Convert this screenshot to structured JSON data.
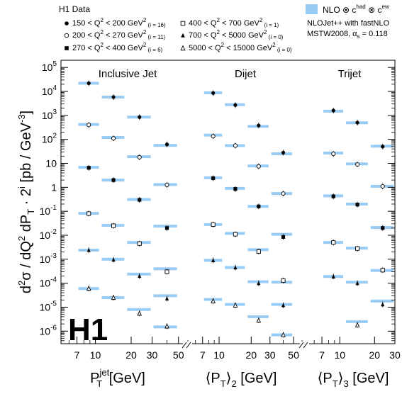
{
  "chart_data": {
    "type": "scatter",
    "legend_title": "H1 Data",
    "legend_entries": [
      {
        "marker": "filled-circle",
        "label_pre": "150 < Q",
        "label_post": " < 200 GeV",
        "sub": "(i = 16)"
      },
      {
        "marker": "open-circle",
        "label_pre": "200 < Q",
        "label_post": " < 270 GeV",
        "sub": "(i = 11)"
      },
      {
        "marker": "filled-square",
        "label_pre": "270 < Q",
        "label_post": " < 400 GeV",
        "sub": "(i = 6)"
      },
      {
        "marker": "open-square",
        "label_pre": "400 < Q",
        "label_post": " < 700 GeV",
        "sub": "(i = 1)"
      },
      {
        "marker": "filled-triangle",
        "label_pre": "700 < Q",
        "label_post": " < 5000 GeV",
        "sub": "(i = 0)"
      },
      {
        "marker": "open-triangle",
        "label_pre": "5000 < Q",
        "label_post": " < 15000 GeV",
        "sub": "(i = 0)"
      }
    ],
    "theory_legend": {
      "label_pre": "NLO ⊗ c",
      "sup1": "had",
      "mid": " ⊗ c",
      "sup2": "ew",
      "color": "#99ccf5",
      "note1": "NLOJet++ with fastNLO",
      "note2_pre": "MSTW2008, α",
      "note2_sub": "s",
      "note2_post": " = 0.118"
    },
    "ylabel": {
      "a": "d",
      "b": "σ / dQ",
      "c": " dP",
      "d": "T",
      "e": " · 2",
      "f": "i",
      "g": " [pb / GeV",
      "h": "-3",
      "i": "]"
    },
    "ylim": [
      3e-07,
      200000.0
    ],
    "yscale": "log",
    "yticks": [
      {
        "v": 1e-06,
        "base": "10",
        "exp": "-6"
      },
      {
        "v": 1e-05,
        "base": "10",
        "exp": "-5"
      },
      {
        "v": 0.0001,
        "base": "10",
        "exp": "-4"
      },
      {
        "v": 0.001,
        "base": "10",
        "exp": "-3"
      },
      {
        "v": 0.01,
        "base": "10",
        "exp": "-2"
      },
      {
        "v": 0.1,
        "base": "10",
        "exp": "-1"
      },
      {
        "v": 1,
        "base": "1",
        "exp": ""
      },
      {
        "v": 10,
        "base": "10",
        "exp": ""
      },
      {
        "v": 100,
        "base": "10",
        "exp": "2"
      },
      {
        "v": 1000.0,
        "base": "10",
        "exp": "3"
      },
      {
        "v": 10000.0,
        "base": "10",
        "exp": "4"
      },
      {
        "v": 100000.0,
        "base": "10",
        "exp": "5"
      }
    ],
    "logo": "H1",
    "marker_order": [
      "filled-circle",
      "open-circle",
      "filled-square",
      "open-square",
      "filled-triangle",
      "open-triangle"
    ],
    "panels": [
      {
        "title": "Inclusive Jet",
        "xlabel_pre": "P",
        "xlabel_sub": "T",
        "xlabel_sup": "jet",
        "xlabel_post": " [GeV]",
        "xlim": [
          5.5,
          60
        ],
        "xscale": "log",
        "xticks": [
          {
            "v": 7,
            "label": "7"
          },
          {
            "v": 10,
            "label": "10"
          },
          {
            "v": 20,
            "label": "20"
          },
          {
            "v": 30,
            "label": "30"
          },
          {
            "v": 50,
            "label": "50"
          }
        ],
        "bins": [
          [
            7,
            11
          ],
          [
            11,
            18
          ],
          [
            18,
            30
          ],
          [
            30,
            50
          ]
        ],
        "points_x": [
          8.8,
          14.2,
          23.5,
          40.0
        ],
        "series": [
          {
            "data": [
              22000,
              5800,
              850,
              62
            ],
            "theory": [
              22000,
              5800,
              850,
              56
            ]
          },
          {
            "data": [
              400,
              110,
              18,
              1.25
            ],
            "theory": [
              420,
              120,
              19,
              1.3
            ]
          },
          {
            "data": [
              6.5,
              2.0,
              0.3,
              0.02
            ],
            "theory": [
              6.8,
              2.0,
              0.31,
              0.024
            ]
          },
          {
            "data": [
              0.08,
              0.025,
              0.0045,
              0.0003
            ],
            "theory": [
              0.082,
              0.026,
              0.005,
              0.0004
            ]
          },
          {
            "data": [
              0.0024,
              0.00095,
              0.0002,
              2.3e-05
            ],
            "theory": [
              0.0024,
              0.001,
              0.00024,
              3e-05
            ]
          },
          {
            "data": [
              6e-05,
              2.5e-05,
              5.5e-06,
              1.6e-06
            ],
            "theory": [
              6e-05,
              2.5e-05,
              8e-06,
              1.5e-06
            ]
          }
        ]
      },
      {
        "title": "Dijet",
        "xlabel_pre": "⟨P",
        "xlabel_sub": "T",
        "xlabel_sup": "",
        "xlabel_post": "⟩",
        "xlabel_sub2": "2",
        "xlabel_post2": " [GeV]",
        "xlim": [
          5.5,
          60
        ],
        "xscale": "log",
        "xticks": [
          {
            "v": 7,
            "label": "7"
          },
          {
            "v": 10,
            "label": "10"
          },
          {
            "v": 20,
            "label": "20"
          },
          {
            "v": 30,
            "label": "30"
          },
          {
            "v": 50,
            "label": "50"
          }
        ],
        "bins": [
          [
            7,
            11
          ],
          [
            11,
            18
          ],
          [
            18,
            30
          ],
          [
            30,
            50
          ]
        ],
        "points_x": [
          8.8,
          14.2,
          23.5,
          40.0
        ],
        "series": [
          {
            "data": [
              8500,
              2700,
              380,
              28
            ],
            "theory": [
              8800,
              2800,
              350,
              25
            ]
          },
          {
            "data": [
              135,
              55,
              7.5,
              0.55
            ],
            "theory": [
              150,
              55,
              7.8,
              0.55
            ]
          },
          {
            "data": [
              2.4,
              0.85,
              0.16,
              0.0085
            ],
            "theory": [
              2.5,
              0.9,
              0.16,
              0.011
            ]
          },
          {
            "data": [
              0.028,
              0.011,
              0.0021,
              0.00013
            ],
            "theory": [
              0.028,
              0.012,
              0.0025,
              0.00011
            ]
          },
          {
            "data": [
              0.0009,
              0.00045,
              0.0001,
              1.2e-05
            ],
            "theory": [
              0.0009,
              0.00045,
              0.000115,
              1.3e-05
            ]
          },
          {
            "data": [
              1.8e-05,
              1.2e-05,
              2.8e-06,
              7e-07
            ],
            "theory": [
              2.1e-05,
              1.3e-05,
              4e-06,
              7e-07
            ]
          }
        ]
      },
      {
        "title": "Trijet",
        "xlabel_pre": "⟨P",
        "xlabel_sub": "T",
        "xlabel_sup": "",
        "xlabel_post": "⟩",
        "xlabel_sub2": "3",
        "xlabel_post2": " [GeV]",
        "xlim": [
          5.5,
          30
        ],
        "xscale": "log",
        "xticks": [
          {
            "v": 7,
            "label": "7"
          },
          {
            "v": 10,
            "label": "10"
          },
          {
            "v": 20,
            "label": "20"
          },
          {
            "v": 30,
            "label": "30"
          }
        ],
        "bins": [
          [
            7,
            11
          ],
          [
            11,
            18
          ],
          [
            18,
            30
          ]
        ],
        "points_x": [
          8.8,
          14.2,
          23.5
        ],
        "series": [
          {
            "data": [
              1600,
              500,
              50
            ],
            "theory": [
              1500,
              490,
              52
            ]
          },
          {
            "data": [
              25,
              9,
              1.1
            ],
            "theory": [
              27,
              9.5,
              1.1
            ]
          },
          {
            "data": [
              0.42,
              0.19,
              0.02
            ],
            "theory": [
              0.44,
              0.2,
              0.021
            ]
          },
          {
            "data": [
              0.005,
              0.0028,
              0.00035
            ],
            "theory": [
              0.005,
              0.0029,
              0.00034
            ]
          },
          {
            "data": [
              0.00019,
              0.0001,
              1.3e-05
            ],
            "theory": [
              0.00019,
              0.00011,
              1.8e-05
            ]
          },
          {
            "data": [
              null,
              1.8e-06,
              null
            ],
            "theory": [
              null,
              2.5e-06,
              null
            ]
          }
        ]
      }
    ]
  }
}
